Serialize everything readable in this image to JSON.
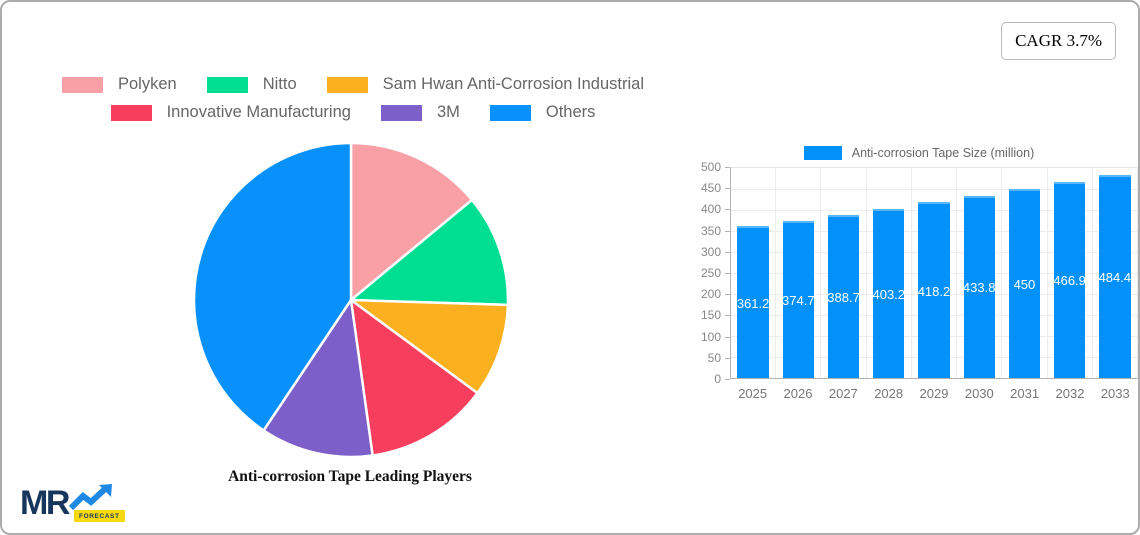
{
  "card": {
    "cagr_badge": "CAGR 3.7%"
  },
  "logo": {
    "text": "MR",
    "badge": "FORECAST",
    "mr_color": "#17365D",
    "arrow_color": "#1E88E5",
    "badge_bg": "#F8D90F"
  },
  "chart_data": [
    {
      "type": "pie",
      "title": "Anti-corrosion Tape Leading Players",
      "legend_position": "top",
      "start_angle_deg": 0,
      "slices": [
        {
          "label": "Polyken",
          "value": 14.0,
          "color": "#F8A0A6"
        },
        {
          "label": "Nitto",
          "value": 11.5,
          "color": "#00DE92"
        },
        {
          "label": "Sam Hwan Anti-Corrosion Industrial",
          "value": 9.6,
          "color": "#FBB020"
        },
        {
          "label": "Innovative Manufacturing",
          "value": 12.7,
          "color": "#F73E5C"
        },
        {
          "label": "3M",
          "value": 11.6,
          "color": "#7C5FC8"
        },
        {
          "label": "Others",
          "value": 40.6,
          "color": "#0991FB"
        }
      ]
    },
    {
      "type": "bar",
      "legend": "Anti-corrosion Tape Size (million)",
      "categories": [
        "2025",
        "2026",
        "2027",
        "2028",
        "2029",
        "2030",
        "2031",
        "2032",
        "2033"
      ],
      "values": [
        361.2,
        374.7,
        388.7,
        403.2,
        418.2,
        433.8,
        450,
        466.9,
        484.4
      ],
      "bar_color": "#0290FB",
      "ylim": [
        0,
        500
      ],
      "ytick_step": 50,
      "grid": true,
      "value_labels_inside": true,
      "legend_position": "top"
    }
  ]
}
